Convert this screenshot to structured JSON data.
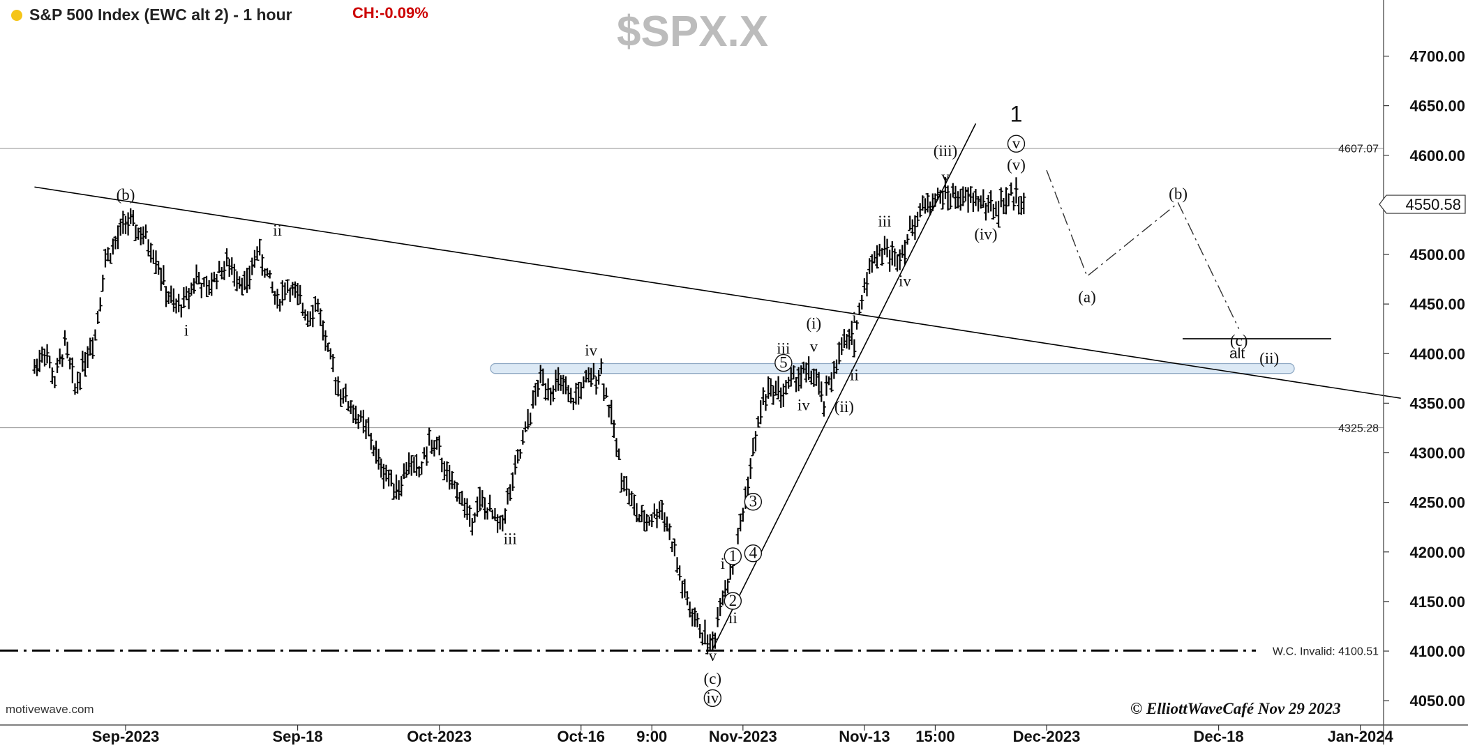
{
  "header": {
    "title": "S&P 500 Index (EWC alt 2) - 1 hour",
    "change": "CH:-0.09%",
    "symbol": "$SPX.X",
    "source": "motivewave.com",
    "copyright": "© ElliottWaveCafé Nov 29 2023"
  },
  "colors": {
    "status_dot": "#f5c518",
    "change_text": "#cc0000",
    "zone_fill": "#dce9f5",
    "zone_stroke": "#8fa9c4",
    "price": "#000000"
  },
  "chart_data": {
    "type": "ohlc-bar",
    "timeframe": "1 hour",
    "ylim": [
      4035,
      4745
    ],
    "y_ticks": [
      4050,
      4100,
      4150,
      4200,
      4250,
      4300,
      4350,
      4400,
      4450,
      4500,
      4550,
      4600,
      4650,
      4700
    ],
    "y_tick_labels": [
      "4050.00",
      "4100.00",
      "4150.00",
      "4200.00",
      "4250.00",
      "4300.00",
      "4350.00",
      "4400.00",
      "4450.00",
      "4500.00",
      "4550.00",
      "4600.00",
      "4650.00",
      "4700.00"
    ],
    "x_ticks": [
      {
        "label": "Sep-2023",
        "date": "2023-09-01"
      },
      {
        "label": "Sep-18",
        "date": "2023-09-18"
      },
      {
        "label": "Oct-2023",
        "date": "2023-10-02"
      },
      {
        "label": "Oct-16",
        "date": "2023-10-16"
      },
      {
        "label": "9:00",
        "date": "2023-10-23"
      },
      {
        "label": "Nov-2023",
        "date": "2023-11-01"
      },
      {
        "label": "Nov-13",
        "date": "2023-11-13"
      },
      {
        "label": "15:00",
        "date": "2023-11-20"
      },
      {
        "label": "Dec-2023",
        "date": "2023-12-01"
      },
      {
        "label": "Dec-18",
        "date": "2023-12-18"
      },
      {
        "label": "Jan-2024",
        "date": "2024-01-01"
      }
    ],
    "last_price": {
      "value": 4550.58,
      "label": "4550.58"
    },
    "price_path": [
      {
        "date": "2023-08-23",
        "price": 4385
      },
      {
        "date": "2023-08-24",
        "price": 4405
      },
      {
        "date": "2023-08-25",
        "price": 4372
      },
      {
        "date": "2023-08-26",
        "price": 4410
      },
      {
        "date": "2023-08-27",
        "price": 4365
      },
      {
        "date": "2023-08-28",
        "price": 4395
      },
      {
        "date": "2023-08-29",
        "price": 4420
      },
      {
        "date": "2023-08-30",
        "price": 4495
      },
      {
        "date": "2023-08-31",
        "price": 4510
      },
      {
        "date": "2023-09-01",
        "price": 4535
      },
      {
        "date": "2023-09-02",
        "price": 4525
      },
      {
        "date": "2023-09-03",
        "price": 4515
      },
      {
        "date": "2023-09-04",
        "price": 4498
      },
      {
        "date": "2023-09-05",
        "price": 4462
      },
      {
        "date": "2023-09-06",
        "price": 4445
      },
      {
        "date": "2023-09-07",
        "price": 4455
      },
      {
        "date": "2023-09-08",
        "price": 4478
      },
      {
        "date": "2023-09-09",
        "price": 4462
      },
      {
        "date": "2023-09-10",
        "price": 4480
      },
      {
        "date": "2023-09-11",
        "price": 4490
      },
      {
        "date": "2023-09-12",
        "price": 4480
      },
      {
        "date": "2023-09-13",
        "price": 4468
      },
      {
        "date": "2023-09-14",
        "price": 4505
      },
      {
        "date": "2023-09-15",
        "price": 4480
      },
      {
        "date": "2023-09-16",
        "price": 4452
      },
      {
        "date": "2023-09-17",
        "price": 4470
      },
      {
        "date": "2023-09-18",
        "price": 4455
      },
      {
        "date": "2023-09-19",
        "price": 4440
      },
      {
        "date": "2023-09-20",
        "price": 4450
      },
      {
        "date": "2023-09-21",
        "price": 4400
      },
      {
        "date": "2023-09-22",
        "price": 4368
      },
      {
        "date": "2023-09-23",
        "price": 4350
      },
      {
        "date": "2023-09-24",
        "price": 4335
      },
      {
        "date": "2023-09-25",
        "price": 4320
      },
      {
        "date": "2023-09-26",
        "price": 4290
      },
      {
        "date": "2023-09-27",
        "price": 4275
      },
      {
        "date": "2023-09-28",
        "price": 4265
      },
      {
        "date": "2023-09-29",
        "price": 4290
      },
      {
        "date": "2023-09-30",
        "price": 4280
      },
      {
        "date": "2023-10-01",
        "price": 4310
      },
      {
        "date": "2023-10-02",
        "price": 4300
      },
      {
        "date": "2023-10-03",
        "price": 4270
      },
      {
        "date": "2023-10-04",
        "price": 4260
      },
      {
        "date": "2023-10-05",
        "price": 4232
      },
      {
        "date": "2023-10-06",
        "price": 4250
      },
      {
        "date": "2023-10-07",
        "price": 4240
      },
      {
        "date": "2023-10-08",
        "price": 4225
      },
      {
        "date": "2023-10-09",
        "price": 4260
      },
      {
        "date": "2023-10-10",
        "price": 4300
      },
      {
        "date": "2023-10-11",
        "price": 4340
      },
      {
        "date": "2023-10-12",
        "price": 4375
      },
      {
        "date": "2023-10-13",
        "price": 4365
      },
      {
        "date": "2023-10-14",
        "price": 4370
      },
      {
        "date": "2023-10-15",
        "price": 4350
      },
      {
        "date": "2023-10-16",
        "price": 4365
      },
      {
        "date": "2023-10-17",
        "price": 4375
      },
      {
        "date": "2023-10-18",
        "price": 4383
      },
      {
        "date": "2023-10-19",
        "price": 4335
      },
      {
        "date": "2023-10-20",
        "price": 4280
      },
      {
        "date": "2023-10-21",
        "price": 4250
      },
      {
        "date": "2023-10-22",
        "price": 4230
      },
      {
        "date": "2023-10-23",
        "price": 4235
      },
      {
        "date": "2023-10-24",
        "price": 4245
      },
      {
        "date": "2023-10-25",
        "price": 4210
      },
      {
        "date": "2023-10-26",
        "price": 4165
      },
      {
        "date": "2023-10-27",
        "price": 4135
      },
      {
        "date": "2023-10-28",
        "price": 4118
      },
      {
        "date": "2023-10-29",
        "price": 4105
      },
      {
        "date": "2023-10-30",
        "price": 4160
      },
      {
        "date": "2023-10-31",
        "price": 4185
      },
      {
        "date": "2023-11-01",
        "price": 4240
      },
      {
        "date": "2023-11-02",
        "price": 4300
      },
      {
        "date": "2023-11-03",
        "price": 4355
      },
      {
        "date": "2023-11-04",
        "price": 4365
      },
      {
        "date": "2023-11-05",
        "price": 4360
      },
      {
        "date": "2023-11-06",
        "price": 4375
      },
      {
        "date": "2023-11-07",
        "price": 4380
      },
      {
        "date": "2023-11-08",
        "price": 4378
      },
      {
        "date": "2023-11-09",
        "price": 4350
      },
      {
        "date": "2023-11-10",
        "price": 4385
      },
      {
        "date": "2023-11-11",
        "price": 4410
      },
      {
        "date": "2023-11-12",
        "price": 4415
      },
      {
        "date": "2023-11-13",
        "price": 4470
      },
      {
        "date": "2023-11-14",
        "price": 4500
      },
      {
        "date": "2023-11-15",
        "price": 4505
      },
      {
        "date": "2023-11-16",
        "price": 4495
      },
      {
        "date": "2023-11-17",
        "price": 4510
      },
      {
        "date": "2023-11-18",
        "price": 4535
      },
      {
        "date": "2023-11-19",
        "price": 4550
      },
      {
        "date": "2023-11-20",
        "price": 4555
      },
      {
        "date": "2023-11-21",
        "price": 4560
      },
      {
        "date": "2023-11-22",
        "price": 4558
      },
      {
        "date": "2023-11-23",
        "price": 4555
      },
      {
        "date": "2023-11-24",
        "price": 4556
      },
      {
        "date": "2023-11-25",
        "price": 4550
      },
      {
        "date": "2023-11-26",
        "price": 4545
      },
      {
        "date": "2023-11-27",
        "price": 4555
      },
      {
        "date": "2023-11-28",
        "price": 4560
      },
      {
        "date": "2023-11-29",
        "price": 4551
      }
    ],
    "horizontal_levels": [
      {
        "value": 4607.07,
        "label": "4607.07",
        "style": "solid-gray"
      },
      {
        "value": 4325.28,
        "label": "4325.28",
        "style": "solid-gray"
      },
      {
        "value": 4100.51,
        "label": "W.C. Invalid: 4100.51",
        "style": "dash-dot"
      }
    ],
    "zone": {
      "from_date": "2023-10-05",
      "to_date": "2023-12-27",
      "low": 4380,
      "high": 4390
    },
    "trendlines": [
      {
        "from": {
          "date": "2023-08-23",
          "price": 4568
        },
        "to": {
          "date": "2024-01-05",
          "price": 4355
        }
      },
      {
        "from": {
          "date": "2023-10-29",
          "price": 4102
        },
        "to": {
          "date": "2023-11-24",
          "price": 4632
        }
      }
    ],
    "projection": [
      {
        "date": "2023-12-01",
        "price": 4585
      },
      {
        "date": "2023-12-05",
        "price": 4478
      },
      {
        "date": "2023-12-14",
        "price": 4552
      },
      {
        "date": "2023-12-20",
        "price": 4425
      }
    ],
    "alt_line": {
      "from": {
        "date": "2023-12-18",
        "price": 4415
      },
      "to": {
        "date": "2023-12-31",
        "price": 4415
      },
      "label": "alt"
    },
    "wave_labels": [
      {
        "text": "(b)",
        "date": "2023-09-01",
        "price": 4555
      },
      {
        "text": "i",
        "date": "2023-09-07",
        "price": 4418
      },
      {
        "text": "ii",
        "date": "2023-09-16",
        "price": 4519
      },
      {
        "text": "iii",
        "date": "2023-10-09",
        "price": 4208
      },
      {
        "text": "iv",
        "date": "2023-10-17",
        "price": 4398
      },
      {
        "text": "v",
        "date": "2023-10-29",
        "price": 4090
      },
      {
        "text": "(c)",
        "date": "2023-10-29",
        "price": 4067
      },
      {
        "text": "iv",
        "date": "2023-10-29",
        "price": 4047,
        "circled": true
      },
      {
        "text": "i",
        "date": "2023-10-30",
        "price": 4183
      },
      {
        "text": "ii",
        "date": "2023-10-31",
        "price": 4128
      },
      {
        "text": "1",
        "date": "2023-10-31",
        "price": 4190,
        "circled": true
      },
      {
        "text": "2",
        "date": "2023-10-31",
        "price": 4145,
        "circled": true
      },
      {
        "text": "3",
        "date": "2023-11-02",
        "price": 4245,
        "circled": true
      },
      {
        "text": "4",
        "date": "2023-11-02",
        "price": 4193,
        "circled": true
      },
      {
        "text": "5",
        "date": "2023-11-05",
        "price": 4385,
        "circled": true
      },
      {
        "text": "iii",
        "date": "2023-11-05",
        "price": 4400
      },
      {
        "text": "iv",
        "date": "2023-11-07",
        "price": 4343
      },
      {
        "text": "v",
        "date": "2023-11-08",
        "price": 4402
      },
      {
        "text": "(i)",
        "date": "2023-11-08",
        "price": 4425
      },
      {
        "text": "(ii)",
        "date": "2023-11-11",
        "price": 4341
      },
      {
        "text": "i",
        "date": "2023-11-12",
        "price": 4431
      },
      {
        "text": "ii",
        "date": "2023-11-12",
        "price": 4373
      },
      {
        "text": "iii",
        "date": "2023-11-15",
        "price": 4528
      },
      {
        "text": "iv",
        "date": "2023-11-17",
        "price": 4468
      },
      {
        "text": "v",
        "date": "2023-11-21",
        "price": 4573
      },
      {
        "text": "(iii)",
        "date": "2023-11-21",
        "price": 4599
      },
      {
        "text": "(iv)",
        "date": "2023-11-25",
        "price": 4515
      },
      {
        "text": "(v)",
        "date": "2023-11-28",
        "price": 4585
      },
      {
        "text": "v",
        "date": "2023-11-28",
        "price": 4606,
        "circled": true
      },
      {
        "text": "1",
        "date": "2023-11-28",
        "price": 4634,
        "large": true
      },
      {
        "text": "(a)",
        "date": "2023-12-05",
        "price": 4452
      },
      {
        "text": "(b)",
        "date": "2023-12-14",
        "price": 4556
      },
      {
        "text": "(c)",
        "date": "2023-12-20",
        "price": 4408
      },
      {
        "text": "(ii)",
        "date": "2023-12-23",
        "price": 4390
      }
    ]
  }
}
